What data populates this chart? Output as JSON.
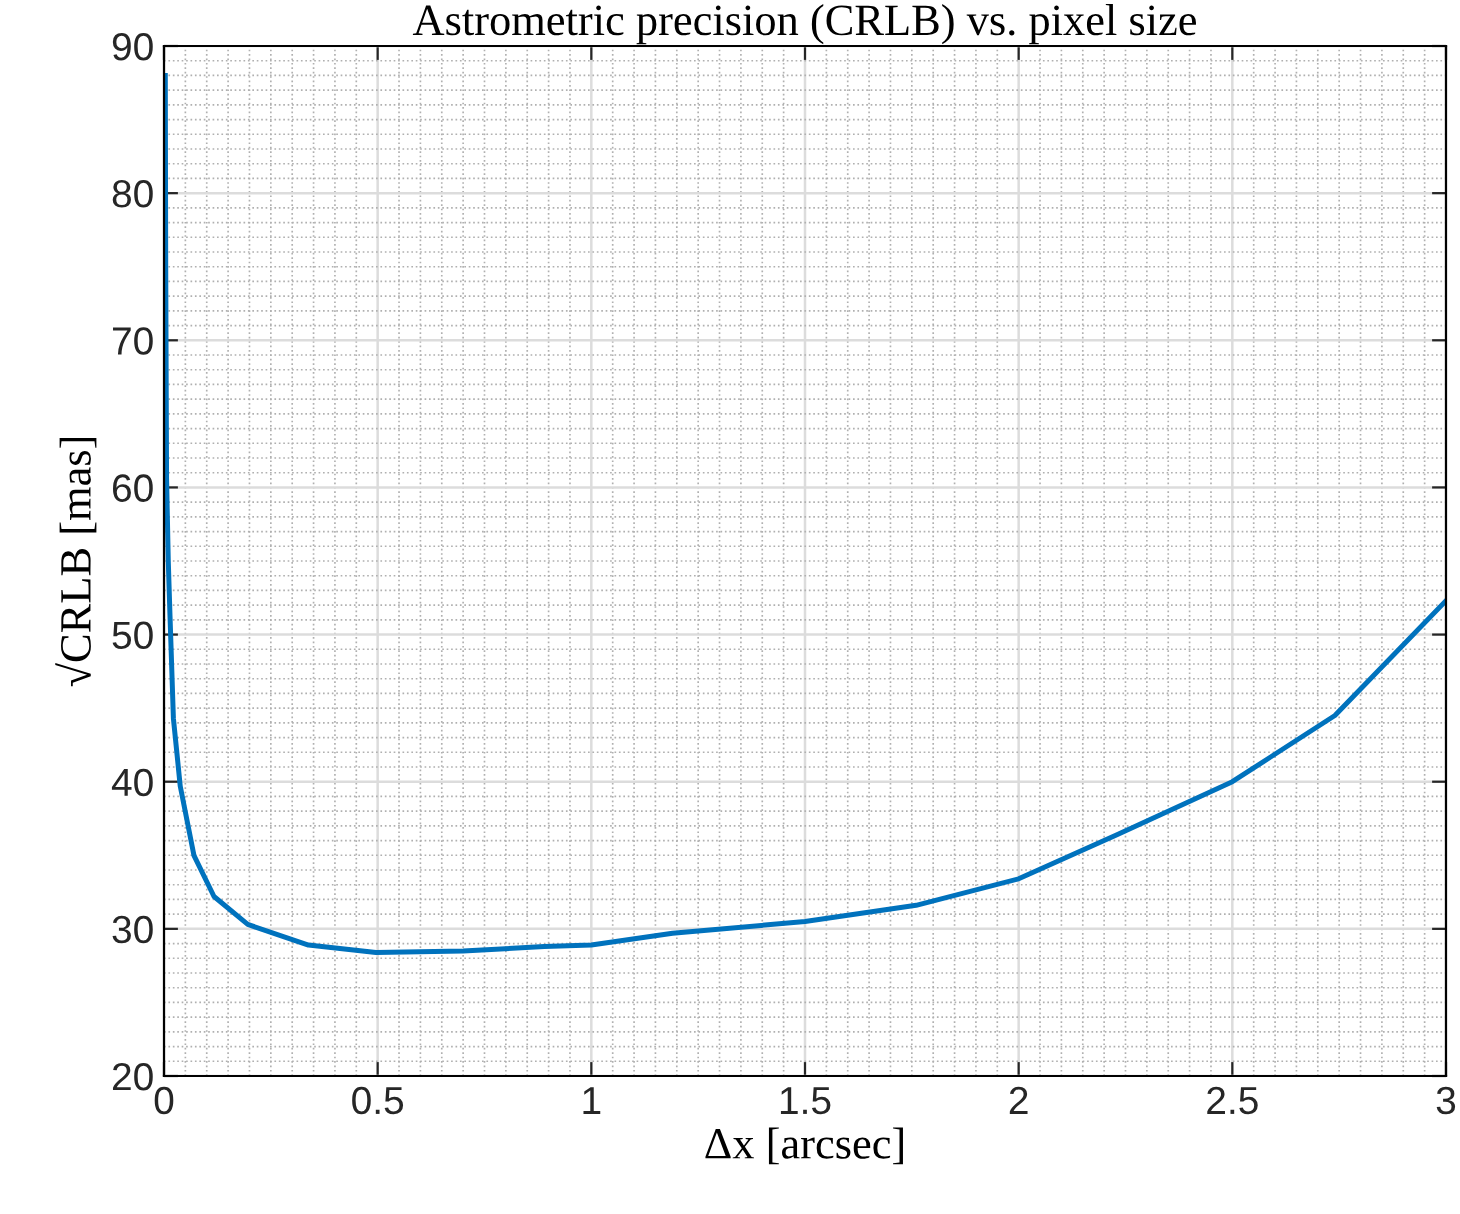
{
  "chart_data": {
    "type": "line",
    "title": "Astrometric precision (CRLB) vs. pixel size",
    "xlabel": "Δx [arcsec]",
    "ylabel": "√CRLB [mas]",
    "series": [
      {
        "color": "#0072bd",
        "x": [
          0.003,
          0.004,
          0.006,
          0.01,
          0.014,
          0.022,
          0.038,
          0.07,
          0.117,
          0.196,
          0.338,
          0.496,
          0.7,
          0.89,
          1.0,
          1.19,
          1.5,
          1.76,
          2.0,
          2.23,
          2.5,
          2.74,
          3.0
        ],
        "values": [
          88,
          75,
          60.6,
          55,
          51.3,
          44.3,
          39.7,
          35.0,
          32.2,
          30.3,
          28.9,
          28.4,
          28.5,
          28.8,
          28.9,
          29.7,
          30.5,
          31.6,
          33.4,
          36.4,
          40.0,
          44.5,
          52.3
        ]
      }
    ],
    "xlim": [
      0,
      3
    ],
    "xticks": [
      0,
      0.5,
      1,
      1.5,
      2,
      2.5,
      3
    ],
    "ylim": [
      20,
      90
    ],
    "yticks": [
      20,
      30,
      40,
      50,
      60,
      70,
      80,
      90
    ],
    "grid": true,
    "legend": false,
    "marker": "none",
    "line_style": "solid"
  }
}
